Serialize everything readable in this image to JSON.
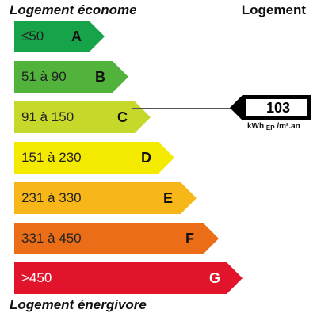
{
  "header": {
    "left_title": "Logement économe",
    "right_title": "Logement"
  },
  "footer": {
    "left_title": "Logement énergivore"
  },
  "bars": [
    {
      "range": "≤50",
      "letter": "A",
      "color": "#16a34a",
      "text_light": false
    },
    {
      "range": "51 à 90",
      "letter": "B",
      "color": "#52b33c",
      "text_light": false
    },
    {
      "range": "91 à 150",
      "letter": "C",
      "color": "#c6d82a",
      "text_light": false
    },
    {
      "range": "151 à 230",
      "letter": "D",
      "color": "#f4ea00",
      "text_light": false
    },
    {
      "range": "231 à 330",
      "letter": "E",
      "color": "#f7b719",
      "text_light": false
    },
    {
      "range": "331 à 450",
      "letter": "F",
      "color": "#ec6d17",
      "text_light": false
    },
    {
      "range": ">450",
      "letter": "G",
      "color": "#e2142b",
      "text_light": true
    }
  ],
  "indicator": {
    "value": "103",
    "unit_main": "kWh",
    "unit_sub": "EP",
    "unit_tail": "/m².an",
    "class": "C"
  }
}
